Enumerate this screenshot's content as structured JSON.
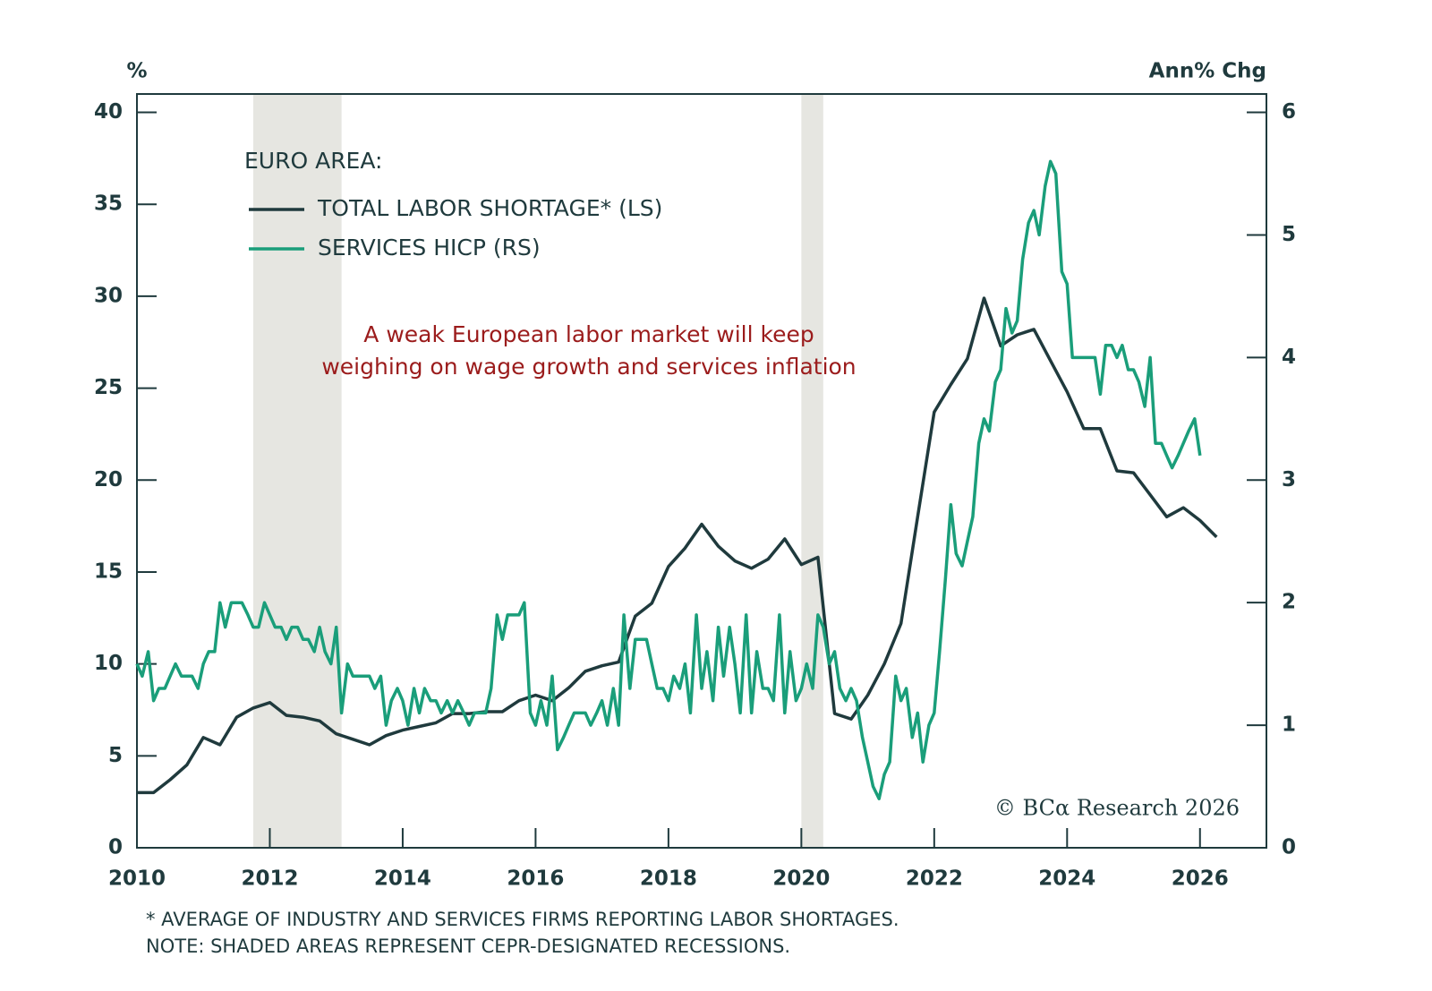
{
  "chart_data": {
    "type": "line",
    "legend_title": "EURO AREA:",
    "annotation": [
      "A weak European labor market will keep",
      "weighing on wage growth and services inflation"
    ],
    "ylabel": "%",
    "y2label": "Ann% Chg",
    "source": "© BCα Research 2026",
    "footnotes": [
      "* AVERAGE OF INDUSTRY AND SERVICES FIRMS REPORTING LABOR SHORTAGES.",
      "NOTE: SHADED AREAS REPRESENT CEPR-DESIGNATED RECESSIONS."
    ],
    "xlim": [
      2010,
      2027
    ],
    "xticks": [
      2010,
      2012,
      2014,
      2016,
      2018,
      2020,
      2022,
      2024,
      2026
    ],
    "ylim": [
      0,
      41
    ],
    "yticks": [
      0,
      5,
      10,
      15,
      20,
      25,
      30,
      35,
      40
    ],
    "y2lim": [
      0,
      6.15
    ],
    "y2ticks": [
      0,
      1,
      2,
      3,
      4,
      5,
      6
    ],
    "shaded_periods": [
      [
        2011.75,
        2013.08
      ],
      [
        2020.0,
        2020.33
      ]
    ],
    "shade_color": "#e6e6e1",
    "series": [
      {
        "name": "TOTAL LABOR SHORTAGE* (LS)",
        "color": "#1f3a3d",
        "axis": "y",
        "x": [
          2010,
          2010.25,
          2010.5,
          2010.75,
          2011,
          2011.25,
          2011.5,
          2011.75,
          2012,
          2012.25,
          2012.5,
          2012.75,
          2013,
          2013.25,
          2013.5,
          2013.75,
          2014,
          2014.25,
          2014.5,
          2014.75,
          2015,
          2015.25,
          2015.5,
          2015.75,
          2016,
          2016.25,
          2016.5,
          2016.75,
          2017,
          2017.25,
          2017.5,
          2017.75,
          2018,
          2018.25,
          2018.5,
          2018.75,
          2019,
          2019.25,
          2019.5,
          2019.75,
          2020,
          2020.25,
          2020.5,
          2020.75,
          2021,
          2021.25,
          2021.5,
          2021.75,
          2022,
          2022.25,
          2022.5,
          2022.75,
          2023,
          2023.25,
          2023.5,
          2023.75,
          2024,
          2024.25,
          2024.5,
          2024.75,
          2025,
          2025.25,
          2025.5,
          2025.75,
          2026,
          2026.25
        ],
        "values": [
          3.0,
          3.0,
          3.7,
          4.5,
          6.0,
          5.6,
          7.1,
          7.6,
          7.9,
          7.2,
          7.1,
          6.9,
          6.2,
          5.9,
          5.6,
          6.1,
          6.4,
          6.6,
          6.8,
          7.3,
          7.3,
          7.4,
          7.4,
          8.0,
          8.3,
          8.0,
          8.7,
          9.6,
          9.9,
          10.1,
          12.6,
          13.3,
          15.3,
          16.3,
          17.6,
          16.4,
          15.6,
          15.2,
          15.7,
          16.8,
          15.4,
          15.8,
          7.3,
          7.0,
          8.3,
          10.0,
          12.2,
          18.0,
          23.7,
          25.2,
          26.6,
          29.9,
          27.3,
          27.9,
          28.2,
          26.5,
          24.8,
          22.8,
          22.8,
          20.5,
          20.4,
          19.2,
          18.0,
          18.5,
          17.8,
          16.9
        ]
      },
      {
        "name": "SERVICES HICP (RS)",
        "color": "#1a9e7a",
        "axis": "y2",
        "x": [
          2010,
          2010.08,
          2010.17,
          2010.25,
          2010.33,
          2010.42,
          2010.5,
          2010.58,
          2010.67,
          2010.75,
          2010.83,
          2010.92,
          2011,
          2011.08,
          2011.17,
          2011.25,
          2011.33,
          2011.42,
          2011.5,
          2011.58,
          2011.67,
          2011.75,
          2011.83,
          2011.92,
          2012,
          2012.08,
          2012.17,
          2012.25,
          2012.33,
          2012.42,
          2012.5,
          2012.58,
          2012.67,
          2012.75,
          2012.83,
          2012.92,
          2013,
          2013.08,
          2013.17,
          2013.25,
          2013.33,
          2013.42,
          2013.5,
          2013.58,
          2013.67,
          2013.75,
          2013.83,
          2013.92,
          2014,
          2014.08,
          2014.17,
          2014.25,
          2014.33,
          2014.42,
          2014.5,
          2014.58,
          2014.67,
          2014.75,
          2014.83,
          2014.92,
          2015,
          2015.08,
          2015.17,
          2015.25,
          2015.33,
          2015.42,
          2015.5,
          2015.58,
          2015.67,
          2015.75,
          2015.83,
          2015.92,
          2016,
          2016.08,
          2016.17,
          2016.25,
          2016.33,
          2016.42,
          2016.5,
          2016.58,
          2016.67,
          2016.75,
          2016.83,
          2016.92,
          2017,
          2017.08,
          2017.17,
          2017.25,
          2017.33,
          2017.42,
          2017.5,
          2017.58,
          2017.67,
          2017.75,
          2017.83,
          2017.92,
          2018,
          2018.08,
          2018.17,
          2018.25,
          2018.33,
          2018.42,
          2018.5,
          2018.58,
          2018.67,
          2018.75,
          2018.83,
          2018.92,
          2019,
          2019.08,
          2019.17,
          2019.25,
          2019.33,
          2019.42,
          2019.5,
          2019.58,
          2019.67,
          2019.75,
          2019.83,
          2019.92,
          2020,
          2020.08,
          2020.17,
          2020.25,
          2020.33,
          2020.42,
          2020.5,
          2020.58,
          2020.67,
          2020.75,
          2020.83,
          2020.92,
          2021,
          2021.08,
          2021.17,
          2021.25,
          2021.33,
          2021.42,
          2021.5,
          2021.58,
          2021.67,
          2021.75,
          2021.83,
          2021.92,
          2022,
          2022.08,
          2022.17,
          2022.25,
          2022.33,
          2022.42,
          2022.5,
          2022.58,
          2022.67,
          2022.75,
          2022.83,
          2022.92,
          2023,
          2023.08,
          2023.17,
          2023.25,
          2023.33,
          2023.42,
          2023.5,
          2023.58,
          2023.67,
          2023.75,
          2023.83,
          2023.92,
          2024,
          2024.08,
          2024.17,
          2024.25,
          2024.33,
          2024.42,
          2024.5,
          2024.58,
          2024.67,
          2024.75,
          2024.83,
          2024.92,
          2025,
          2025.08,
          2025.17,
          2025.25,
          2025.33,
          2025.42,
          2025.5,
          2025.58,
          2025.67,
          2025.75,
          2025.83,
          2025.92,
          2026
        ],
        "values": [
          1.5,
          1.4,
          1.6,
          1.2,
          1.3,
          1.3,
          1.4,
          1.5,
          1.4,
          1.4,
          1.4,
          1.3,
          1.5,
          1.6,
          1.6,
          2.0,
          1.8,
          2.0,
          2.0,
          2.0,
          1.9,
          1.8,
          1.8,
          2.0,
          1.9,
          1.8,
          1.8,
          1.7,
          1.8,
          1.8,
          1.7,
          1.7,
          1.6,
          1.8,
          1.6,
          1.5,
          1.8,
          1.1,
          1.5,
          1.4,
          1.4,
          1.4,
          1.4,
          1.3,
          1.4,
          1.0,
          1.2,
          1.3,
          1.2,
          1.0,
          1.3,
          1.1,
          1.3,
          1.2,
          1.2,
          1.1,
          1.2,
          1.1,
          1.2,
          1.1,
          1.0,
          1.1,
          1.1,
          1.1,
          1.3,
          1.9,
          1.7,
          1.9,
          1.9,
          1.9,
          2.0,
          1.1,
          1.0,
          1.2,
          1.0,
          1.4,
          0.8,
          0.9,
          1.0,
          1.1,
          1.1,
          1.1,
          1.0,
          1.1,
          1.2,
          1.0,
          1.3,
          1.0,
          1.9,
          1.3,
          1.7,
          1.7,
          1.7,
          1.5,
          1.3,
          1.3,
          1.2,
          1.4,
          1.3,
          1.5,
          1.1,
          1.9,
          1.3,
          1.6,
          1.2,
          1.8,
          1.4,
          1.8,
          1.5,
          1.1,
          1.9,
          1.1,
          1.6,
          1.3,
          1.3,
          1.2,
          1.9,
          1.1,
          1.6,
          1.2,
          1.3,
          1.5,
          1.3,
          1.9,
          1.8,
          1.5,
          1.6,
          1.3,
          1.2,
          1.3,
          1.2,
          0.9,
          0.7,
          0.5,
          0.4,
          0.6,
          0.7,
          1.4,
          1.2,
          1.3,
          0.9,
          1.1,
          0.7,
          1.0,
          1.1,
          1.6,
          2.2,
          2.8,
          2.4,
          2.3,
          2.5,
          2.7,
          3.3,
          3.5,
          3.4,
          3.8,
          3.9,
          4.4,
          4.2,
          4.3,
          4.8,
          5.1,
          5.2,
          5.0,
          5.4,
          5.6,
          5.5,
          4.7,
          4.6,
          4.0,
          4.0,
          4.0,
          4.0,
          4.0,
          3.7,
          4.1,
          4.1,
          4.0,
          4.1,
          3.9,
          3.9,
          3.8,
          3.6,
          4.0,
          3.3,
          3.3,
          3.2,
          3.1,
          3.2,
          3.3,
          3.4,
          3.5,
          3.2
        ]
      }
    ]
  }
}
